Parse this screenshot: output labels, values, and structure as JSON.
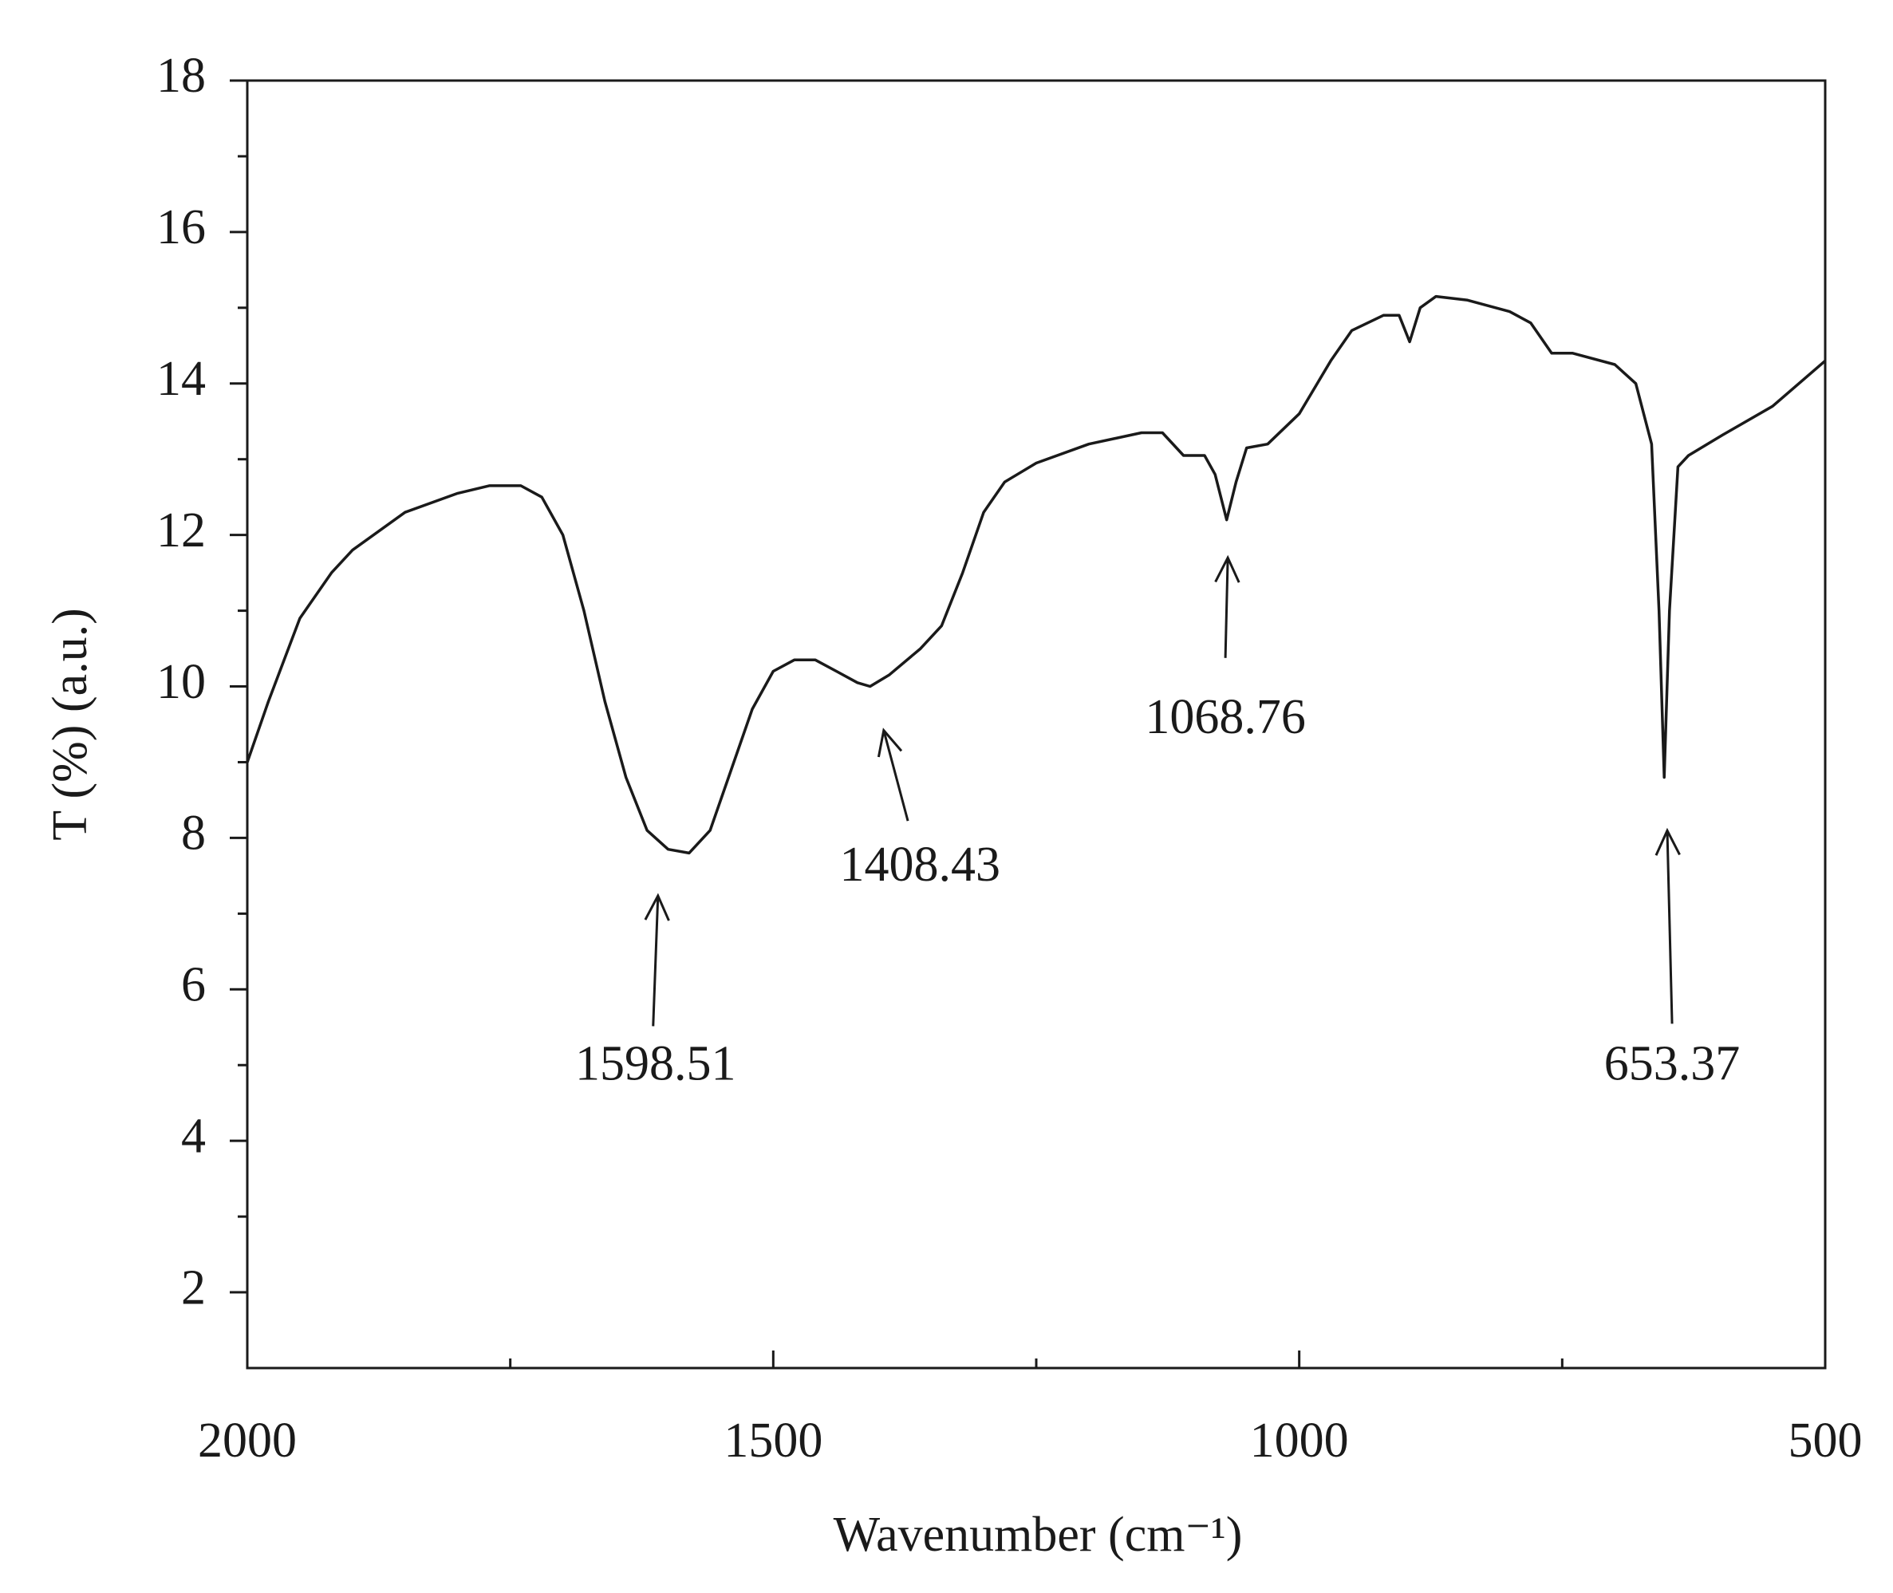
{
  "chart_data": {
    "type": "line",
    "xlabel": "Wavenumber (cm⁻¹)",
    "ylabel": "T (%) (a.u.)",
    "xlim": [
      2000,
      500
    ],
    "ylim": [
      1,
      18
    ],
    "xticks": [
      2000,
      1500,
      1000,
      500
    ],
    "yticks": [
      2,
      4,
      6,
      8,
      10,
      12,
      14,
      16,
      18
    ],
    "xminor_ticks": [
      1750,
      1250,
      750
    ],
    "yminor_ticks": [
      3,
      5,
      7,
      9,
      11,
      13,
      15,
      17
    ],
    "series": [
      {
        "color": "#1a1a1a",
        "x": [
          2000,
          1980,
          1950,
          1920,
          1900,
          1850,
          1800,
          1770,
          1740,
          1720,
          1700,
          1680,
          1660,
          1640,
          1620,
          1600,
          1580,
          1560,
          1540,
          1520,
          1500,
          1480,
          1460,
          1440,
          1420,
          1408,
          1390,
          1360,
          1340,
          1320,
          1300,
          1280,
          1250,
          1200,
          1150,
          1130,
          1110,
          1090,
          1080,
          1069,
          1060,
          1050,
          1030,
          1000,
          970,
          950,
          920,
          905,
          895,
          885,
          870,
          840,
          800,
          780,
          760,
          740,
          700,
          680,
          665,
          658,
          653,
          648,
          640,
          630,
          600,
          550,
          500
        ],
        "values": [
          9.0,
          9.8,
          10.9,
          11.5,
          11.8,
          12.3,
          12.55,
          12.65,
          12.65,
          12.5,
          12.0,
          11.0,
          9.8,
          8.8,
          8.1,
          7.85,
          7.8,
          8.1,
          8.9,
          9.7,
          10.2,
          10.35,
          10.35,
          10.2,
          10.05,
          10.0,
          10.15,
          10.5,
          10.8,
          11.5,
          12.3,
          12.7,
          12.95,
          13.2,
          13.35,
          13.35,
          13.05,
          13.05,
          12.8,
          12.2,
          12.7,
          13.15,
          13.2,
          13.6,
          14.3,
          14.7,
          14.9,
          14.9,
          14.55,
          15.0,
          15.15,
          15.1,
          14.95,
          14.8,
          14.4,
          14.4,
          14.25,
          14.0,
          13.2,
          11.0,
          8.8,
          11.0,
          12.9,
          13.05,
          13.3,
          13.7,
          14.3
        ]
      }
    ],
    "annotations": [
      "1598.51",
      "1408.43",
      "1068.76",
      "653.37"
    ]
  }
}
